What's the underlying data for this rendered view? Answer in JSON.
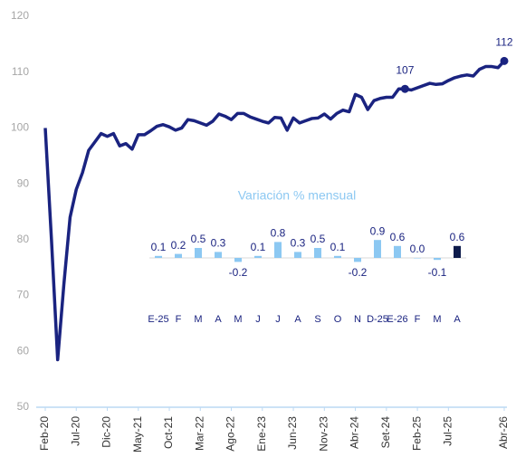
{
  "chart_data": [
    {
      "type": "line",
      "color": "#1a2380",
      "categories": [
        "Feb-20",
        null,
        null,
        null,
        null,
        "Jul-20",
        null,
        null,
        null,
        null,
        "Dic-20",
        null,
        null,
        null,
        null,
        "May-21",
        null,
        null,
        null,
        null,
        "Oct-21",
        null,
        null,
        null,
        null,
        "Mar-22",
        null,
        null,
        null,
        null,
        "Ago-22",
        null,
        null,
        null,
        null,
        "Ene-23",
        null,
        null,
        null,
        null,
        "Jun-23",
        null,
        null,
        null,
        null,
        "Nov-23",
        null,
        null,
        null,
        null,
        "Abr-24",
        null,
        null,
        null,
        null,
        "Set-24",
        null,
        null,
        null,
        null,
        "Feb-25",
        null,
        null,
        null,
        null,
        "Jul-25",
        null,
        null,
        null,
        null,
        null,
        null,
        null,
        null,
        "Abr-26"
      ],
      "values": [
        100,
        80,
        58.5,
        72,
        84,
        89,
        92,
        96,
        97.5,
        99,
        98.5,
        99,
        96.8,
        97.2,
        96.2,
        98.8,
        98.8,
        99.5,
        100.3,
        100.6,
        100.2,
        99.6,
        100,
        101.5,
        101.3,
        100.9,
        100.5,
        101.2,
        102.5,
        102.1,
        101.5,
        102.6,
        102.6,
        102,
        101.6,
        101.2,
        100.9,
        101.9,
        101.8,
        99.6,
        101.8,
        100.9,
        101.3,
        101.7,
        101.8,
        102.5,
        101.6,
        102.6,
        103.2,
        102.9,
        106,
        105.5,
        103.3,
        104.9,
        105.3,
        105.5,
        105.5,
        107,
        107,
        106.8,
        107.2,
        107.6,
        108,
        107.8,
        107.9,
        108.5,
        109,
        109.3,
        109.5,
        109.3,
        110.5,
        111,
        111,
        110.8,
        112
      ],
      "value_labels": [
        null,
        null,
        null,
        null,
        null,
        null,
        null,
        null,
        null,
        null,
        null,
        null,
        null,
        null,
        null,
        null,
        null,
        null,
        null,
        null,
        null,
        null,
        null,
        null,
        null,
        null,
        null,
        null,
        null,
        null,
        null,
        null,
        null,
        null,
        null,
        null,
        null,
        null,
        null,
        null,
        null,
        null,
        null,
        null,
        null,
        null,
        null,
        null,
        null,
        null,
        null,
        null,
        null,
        null,
        null,
        null,
        null,
        null,
        "107",
        null,
        null,
        null,
        null,
        null,
        null,
        null,
        null,
        null,
        null,
        null,
        null,
        null,
        null,
        null,
        "112"
      ],
      "ylim": [
        50,
        120
      ],
      "yticks": [
        50,
        60,
        70,
        80,
        90,
        100,
        110,
        120
      ]
    },
    {
      "type": "bar",
      "title": "Variación % mensual",
      "categories": [
        "E-25",
        "F",
        "M",
        "A",
        "M",
        "J",
        "J",
        "A",
        "S",
        "O",
        "N",
        "D-25",
        "E-26",
        "F",
        "M",
        "A"
      ],
      "values": [
        0.1,
        0.2,
        0.5,
        0.3,
        -0.2,
        0.1,
        0.8,
        0.3,
        0.5,
        0.1,
        -0.2,
        0.9,
        0.6,
        0.0,
        -0.1,
        0.6
      ],
      "value_labels": [
        "0.1",
        "0.2",
        "0.5",
        "0.3",
        "-0.2",
        "0.1",
        "0.8",
        "0.3",
        "0.5",
        "0.1",
        "-0.2",
        "0.9",
        "0.6",
        "0.0",
        "-0.1",
        "0.6"
      ],
      "colors": [
        "#8cc8f2",
        "#8cc8f2",
        "#8cc8f2",
        "#8cc8f2",
        "#8cc8f2",
        "#8cc8f2",
        "#8cc8f2",
        "#8cc8f2",
        "#8cc8f2",
        "#8cc8f2",
        "#8cc8f2",
        "#8cc8f2",
        "#8cc8f2",
        "#8cc8f2",
        "#8cc8f2",
        "#0d1b4b"
      ],
      "ylim": [
        -0.5,
        1.0
      ]
    }
  ]
}
